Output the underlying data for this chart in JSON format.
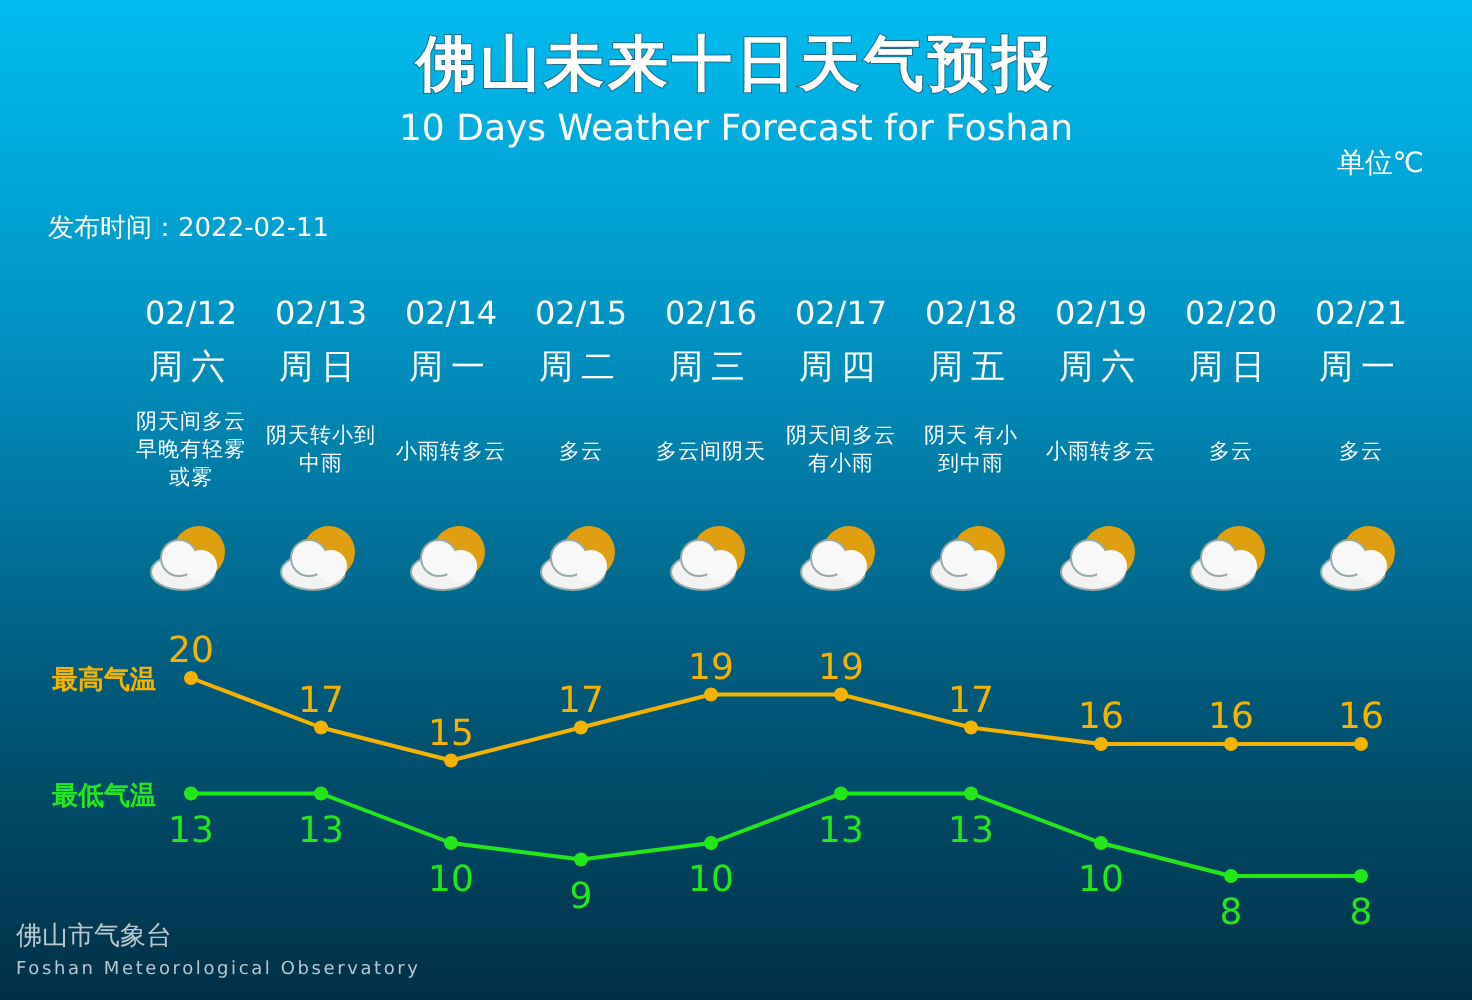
{
  "chart_data": {
    "type": "line",
    "title": "佛山未来十日天气预报",
    "subtitle": "10 Days Weather Forecast for Foshan",
    "categories": [
      "02/12\n周六",
      "02/13\n周日",
      "02/14\n周一",
      "02/15\n周二",
      "02/16\n周三",
      "02/17\n周四",
      "02/18\n周五",
      "02/19\n周六",
      "02/20\n周日",
      "02/21\n周一"
    ],
    "series": [
      {
        "name": "最高气温",
        "color": "#f5b300",
        "values": [
          20,
          17,
          15,
          17,
          19,
          19,
          17,
          16,
          16,
          16
        ]
      },
      {
        "name": "最低气温",
        "color": "#22e81a",
        "values": [
          13,
          13,
          10,
          9,
          10,
          13,
          13,
          10,
          8,
          8
        ]
      }
    ],
    "data_labels": true,
    "marker": "circle",
    "line_style": "solid",
    "annotations": [
      "发布时间：2022-02-11",
      "单位℃",
      "佛山市气象台",
      "Foshan Meteorological Observatory",
      "阴天间多云早晚有轻雾或雾",
      "阴天转小到中雨",
      "小雨转多云",
      "多云",
      "多云间阴天",
      "阴天间多云有小雨",
      "阴天 有小到中雨",
      "小雨转多云",
      "多云",
      "多云"
    ]
  }
}
